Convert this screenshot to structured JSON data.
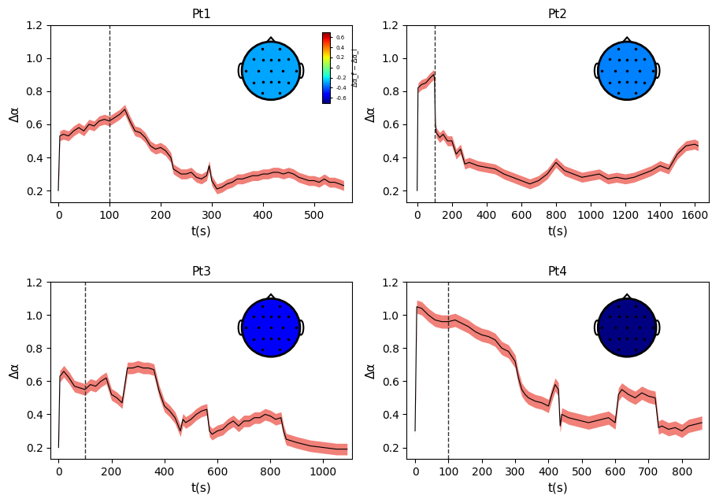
{
  "chart_data": [
    {
      "type": "line",
      "title": "Pt1",
      "x_label": "t(s)",
      "y_label": "Δα",
      "xlim": [
        -15,
        575
      ],
      "xticks": [
        0,
        100,
        200,
        300,
        400,
        500
      ],
      "ylim": [
        0.13,
        1.2
      ],
      "yticks": [
        0.2,
        0.4,
        0.6,
        0.8,
        1.0,
        1.2
      ],
      "vline": 100,
      "topomap_value": -0.3,
      "colorbar": {
        "label": "Δα_f − Δα_i",
        "range": [
          -0.7,
          0.7
        ],
        "ticks": [
          -0.6,
          -0.4,
          -0.2,
          0,
          0.2,
          0.4,
          0.6
        ]
      },
      "x": [
        0,
        3,
        10,
        20,
        30,
        40,
        50,
        60,
        70,
        80,
        90,
        100,
        110,
        120,
        130,
        140,
        150,
        160,
        170,
        180,
        190,
        200,
        210,
        220,
        225,
        230,
        240,
        250,
        260,
        270,
        280,
        290,
        295,
        300,
        310,
        320,
        330,
        340,
        350,
        360,
        370,
        380,
        390,
        400,
        410,
        420,
        430,
        440,
        450,
        460,
        470,
        480,
        490,
        500,
        510,
        520,
        530,
        540,
        550,
        558
      ],
      "series": [
        {
          "color": "#000000",
          "band": 0.03,
          "values": [
            0.2,
            0.53,
            0.54,
            0.53,
            0.56,
            0.58,
            0.56,
            0.6,
            0.59,
            0.62,
            0.63,
            0.62,
            0.64,
            0.66,
            0.69,
            0.62,
            0.56,
            0.55,
            0.52,
            0.47,
            0.45,
            0.46,
            0.44,
            0.4,
            0.33,
            0.32,
            0.3,
            0.3,
            0.31,
            0.28,
            0.27,
            0.29,
            0.35,
            0.26,
            0.21,
            0.22,
            0.24,
            0.25,
            0.27,
            0.27,
            0.28,
            0.29,
            0.29,
            0.3,
            0.3,
            0.31,
            0.31,
            0.3,
            0.31,
            0.3,
            0.28,
            0.27,
            0.26,
            0.26,
            0.25,
            0.27,
            0.25,
            0.25,
            0.24,
            0.23
          ]
        }
      ]
    },
    {
      "type": "line",
      "title": "Pt2",
      "x_label": "t(s)",
      "y_label": "Δα",
      "xlim": [
        -60,
        1680
      ],
      "xticks": [
        0,
        200,
        400,
        600,
        800,
        1000,
        1200,
        1400,
        1600
      ],
      "ylim": [
        0.13,
        1.2
      ],
      "yticks": [
        0.2,
        0.4,
        0.6,
        0.8,
        1.0,
        1.2
      ],
      "vline": 100,
      "topomap_value": -0.35,
      "x": [
        0,
        5,
        25,
        50,
        75,
        95,
        100,
        105,
        110,
        130,
        150,
        175,
        200,
        225,
        250,
        275,
        300,
        350,
        400,
        450,
        500,
        550,
        600,
        650,
        700,
        750,
        800,
        850,
        900,
        950,
        1000,
        1050,
        1100,
        1150,
        1200,
        1250,
        1300,
        1350,
        1400,
        1450,
        1500,
        1550,
        1600,
        1620
      ],
      "series": [
        {
          "color": "#000000",
          "band": 0.03,
          "values": [
            0.2,
            0.82,
            0.84,
            0.85,
            0.88,
            0.9,
            0.88,
            0.6,
            0.55,
            0.52,
            0.54,
            0.5,
            0.5,
            0.42,
            0.45,
            0.36,
            0.37,
            0.35,
            0.34,
            0.33,
            0.3,
            0.28,
            0.26,
            0.24,
            0.26,
            0.3,
            0.37,
            0.32,
            0.3,
            0.28,
            0.29,
            0.3,
            0.27,
            0.28,
            0.27,
            0.28,
            0.3,
            0.32,
            0.35,
            0.33,
            0.42,
            0.47,
            0.48,
            0.47
          ]
        }
      ]
    },
    {
      "type": "line",
      "title": "Pt3",
      "x_label": "t(s)",
      "y_label": "Δα",
      "xlim": [
        -30,
        1110
      ],
      "xticks": [
        0,
        200,
        400,
        600,
        800,
        1000
      ],
      "ylim": [
        0.13,
        1.2
      ],
      "yticks": [
        0.2,
        0.4,
        0.6,
        0.8,
        1.0,
        1.2
      ],
      "vline": 100,
      "topomap_value": -0.55,
      "x": [
        0,
        5,
        20,
        40,
        60,
        80,
        100,
        120,
        140,
        160,
        180,
        200,
        220,
        240,
        260,
        280,
        300,
        320,
        340,
        360,
        380,
        400,
        420,
        440,
        460,
        470,
        480,
        500,
        520,
        540,
        560,
        570,
        580,
        600,
        620,
        640,
        660,
        680,
        700,
        720,
        740,
        760,
        780,
        800,
        820,
        840,
        850,
        860,
        880,
        900,
        950,
        1000,
        1050,
        1090
      ],
      "series": [
        {
          "color": "#000000",
          "band": 0.035,
          "values": [
            0.2,
            0.63,
            0.66,
            0.62,
            0.57,
            0.56,
            0.55,
            0.58,
            0.57,
            0.6,
            0.62,
            0.52,
            0.5,
            0.47,
            0.68,
            0.68,
            0.69,
            0.68,
            0.68,
            0.67,
            0.54,
            0.45,
            0.42,
            0.38,
            0.3,
            0.37,
            0.35,
            0.37,
            0.4,
            0.42,
            0.43,
            0.3,
            0.28,
            0.3,
            0.31,
            0.34,
            0.36,
            0.33,
            0.36,
            0.36,
            0.38,
            0.38,
            0.4,
            0.39,
            0.37,
            0.38,
            0.3,
            0.25,
            0.24,
            0.23,
            0.21,
            0.2,
            0.19,
            0.19
          ]
        }
      ]
    },
    {
      "type": "line",
      "title": "Pt4",
      "x_label": "t(s)",
      "y_label": "Δα",
      "xlim": [
        -25,
        880
      ],
      "xticks": [
        0,
        100,
        200,
        300,
        400,
        500,
        600,
        700,
        800
      ],
      "ylim": [
        0.13,
        1.2
      ],
      "yticks": [
        0.2,
        0.4,
        0.6,
        0.8,
        1.0,
        1.2
      ],
      "vline": 100,
      "topomap_value": -0.7,
      "x": [
        0,
        5,
        20,
        40,
        60,
        80,
        100,
        120,
        140,
        160,
        180,
        200,
        220,
        240,
        260,
        280,
        300,
        310,
        320,
        330,
        340,
        360,
        380,
        400,
        410,
        420,
        430,
        435,
        440,
        460,
        480,
        500,
        520,
        540,
        560,
        580,
        600,
        610,
        620,
        640,
        660,
        680,
        700,
        720,
        730,
        740,
        760,
        780,
        800,
        820,
        840,
        860
      ],
      "series": [
        {
          "color": "#000000",
          "band": 0.04,
          "values": [
            0.3,
            1.05,
            1.04,
            1.0,
            0.97,
            0.96,
            0.96,
            0.97,
            0.95,
            0.93,
            0.9,
            0.88,
            0.87,
            0.85,
            0.8,
            0.78,
            0.72,
            0.62,
            0.55,
            0.52,
            0.5,
            0.48,
            0.47,
            0.45,
            0.52,
            0.58,
            0.55,
            0.33,
            0.4,
            0.38,
            0.37,
            0.36,
            0.35,
            0.36,
            0.37,
            0.38,
            0.35,
            0.52,
            0.55,
            0.52,
            0.5,
            0.53,
            0.51,
            0.5,
            0.32,
            0.33,
            0.31,
            0.32,
            0.3,
            0.33,
            0.34,
            0.35
          ]
        }
      ]
    }
  ]
}
